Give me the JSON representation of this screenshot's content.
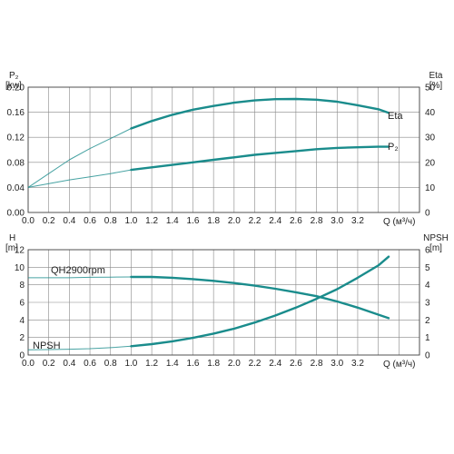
{
  "chart_data": [
    {
      "type": "line",
      "id": "power-efficiency",
      "x_ticks": [
        "0.0",
        "0.2",
        "0.4",
        "0.6",
        "0.8",
        "1.0",
        "1.2",
        "1.4",
        "1.6",
        "1.8",
        "2.0",
        "2.2",
        "2.4",
        "2.6",
        "2.8",
        "3.0",
        "3.2"
      ],
      "xlabel": "Q (м³/ч)",
      "xlim": [
        0,
        3.8
      ],
      "left_axis": {
        "label_top": "P₂",
        "label_unit": "[kw]",
        "ylim": [
          0,
          0.2
        ],
        "ticks": [
          "0.00",
          "0.04",
          "0.08",
          "0.12",
          "0.16",
          "0.20"
        ]
      },
      "right_axis": {
        "label_top": "Eta",
        "label_unit": "[%]",
        "ylim": [
          0,
          50
        ],
        "ticks": [
          "0",
          "10",
          "20",
          "30",
          "40",
          "50"
        ]
      },
      "series": [
        {
          "name": "Eta",
          "axis": "right",
          "color": "#1a8c8c",
          "x": [
            0.0,
            0.2,
            0.4,
            0.6,
            0.8,
            1.0,
            1.2,
            1.4,
            1.6,
            1.8,
            2.0,
            2.2,
            2.4,
            2.6,
            2.8,
            3.0,
            3.2,
            3.4,
            3.5
          ],
          "values": [
            10,
            15.5,
            21,
            25.5,
            29.5,
            33.5,
            36.5,
            39,
            41,
            42.5,
            43.8,
            44.7,
            45.2,
            45.3,
            45,
            44.2,
            42.8,
            41.2,
            39.8
          ],
          "solid_from": 1.0
        },
        {
          "name": "P₂",
          "axis": "left",
          "color": "#1a8c8c",
          "x": [
            0.0,
            0.2,
            0.4,
            0.6,
            0.8,
            1.0,
            1.2,
            1.4,
            1.6,
            1.8,
            2.0,
            2.2,
            2.4,
            2.6,
            2.8,
            3.0,
            3.2,
            3.4,
            3.5
          ],
          "values": [
            0.04,
            0.046,
            0.052,
            0.057,
            0.062,
            0.068,
            0.072,
            0.076,
            0.08,
            0.084,
            0.088,
            0.092,
            0.095,
            0.098,
            0.101,
            0.103,
            0.104,
            0.105,
            0.105
          ],
          "solid_from": 1.0
        }
      ]
    },
    {
      "type": "line",
      "id": "head-npsh",
      "x_ticks": [
        "0.0",
        "0.2",
        "0.4",
        "0.6",
        "0.8",
        "1.0",
        "1.2",
        "1.4",
        "1.6",
        "1.8",
        "2.0",
        "2.2",
        "2.4",
        "2.6",
        "2.8",
        "3.0",
        "3.2"
      ],
      "xlabel": "Q (м³/ч)",
      "xlim": [
        0,
        3.8
      ],
      "left_axis": {
        "label_top": "H",
        "label_unit": "[m]",
        "ylim": [
          0,
          12
        ],
        "ticks": [
          "0",
          "2",
          "4",
          "6",
          "8",
          "10",
          "12"
        ]
      },
      "right_axis": {
        "label_top": "NPSH",
        "label_unit": "[m]",
        "ylim": [
          0,
          6
        ],
        "ticks": [
          "0",
          "1",
          "2",
          "3",
          "4",
          "5",
          "6"
        ]
      },
      "series": [
        {
          "name": "QH2900rpm",
          "axis": "left",
          "color": "#1a8c8c",
          "x": [
            0.0,
            0.2,
            0.4,
            0.6,
            0.8,
            1.0,
            1.2,
            1.4,
            1.6,
            1.8,
            2.0,
            2.2,
            2.4,
            2.6,
            2.8,
            3.0,
            3.2,
            3.4,
            3.5
          ],
          "values": [
            8.8,
            8.8,
            8.8,
            8.85,
            8.88,
            8.9,
            8.9,
            8.8,
            8.65,
            8.45,
            8.2,
            7.9,
            7.55,
            7.15,
            6.7,
            6.1,
            5.4,
            4.6,
            4.2
          ],
          "solid_from": 1.0
        },
        {
          "name": "NPSH",
          "axis": "right",
          "color": "#1a8c8c",
          "x": [
            0.0,
            0.2,
            0.4,
            0.6,
            0.8,
            1.0,
            1.2,
            1.4,
            1.6,
            1.8,
            2.0,
            2.2,
            2.4,
            2.6,
            2.8,
            3.0,
            3.2,
            3.4,
            3.5
          ],
          "values": [
            0.3,
            0.31,
            0.33,
            0.36,
            0.42,
            0.5,
            0.62,
            0.78,
            0.98,
            1.22,
            1.5,
            1.85,
            2.25,
            2.7,
            3.2,
            3.75,
            4.4,
            5.1,
            5.6
          ],
          "solid_from": 1.0
        }
      ]
    }
  ]
}
